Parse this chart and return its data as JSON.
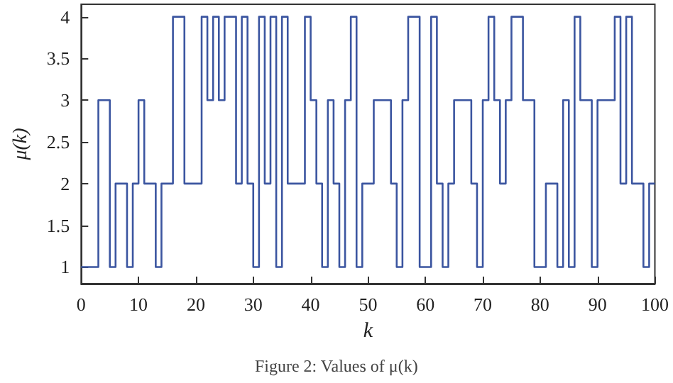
{
  "chart_data": {
    "type": "step",
    "xlabel": "k",
    "ylabel": "μ(k)",
    "annotations": [
      "Figure 2: Values of μ(k)"
    ],
    "x": [
      0,
      1,
      2,
      3,
      4,
      5,
      6,
      7,
      8,
      9,
      10,
      11,
      12,
      13,
      14,
      15,
      16,
      17,
      18,
      19,
      20,
      21,
      22,
      23,
      24,
      25,
      26,
      27,
      28,
      29,
      30,
      31,
      32,
      33,
      34,
      35,
      36,
      37,
      38,
      39,
      40,
      41,
      42,
      43,
      44,
      45,
      46,
      47,
      48,
      49,
      50,
      51,
      52,
      53,
      54,
      55,
      56,
      57,
      58,
      59,
      60,
      61,
      62,
      63,
      64,
      65,
      66,
      67,
      68,
      69,
      70,
      71,
      72,
      73,
      74,
      75,
      76,
      77,
      78,
      79,
      80,
      81,
      82,
      83,
      84,
      85,
      86,
      87,
      88,
      89,
      90,
      91,
      92,
      93,
      94,
      95,
      96,
      97,
      98,
      99,
      100
    ],
    "series": [
      {
        "color": "#3b55a0",
        "values": [
          1,
          1,
          1,
          3,
          3,
          1,
          2,
          2,
          1,
          2,
          3,
          2,
          2,
          1,
          2,
          2,
          4,
          4,
          2,
          2,
          2,
          4,
          3,
          4,
          3,
          4,
          4,
          2,
          4,
          2,
          1,
          4,
          2,
          4,
          1,
          4,
          2,
          2,
          2,
          4,
          3,
          2,
          1,
          3,
          2,
          1,
          3,
          4,
          1,
          2,
          2,
          3,
          3,
          3,
          2,
          1,
          3,
          4,
          4,
          1,
          1,
          4,
          2,
          1,
          2,
          3,
          3,
          3,
          2,
          1,
          3,
          4,
          3,
          2,
          3,
          4,
          4,
          3,
          3,
          1,
          1,
          2,
          2,
          1,
          3,
          1,
          4,
          3,
          3,
          1,
          3,
          3,
          3,
          4,
          2,
          4,
          2,
          2,
          1,
          2,
          2
        ]
      }
    ],
    "xlim": [
      0,
      100
    ],
    "xticks": [
      0,
      10,
      20,
      30,
      40,
      50,
      60,
      70,
      80,
      90,
      100
    ],
    "ylim": [
      0.8,
      4.15
    ],
    "yticks": [
      1,
      1.5,
      2,
      2.5,
      3,
      3.5,
      4
    ],
    "marker": "none",
    "line_style": "solid"
  }
}
